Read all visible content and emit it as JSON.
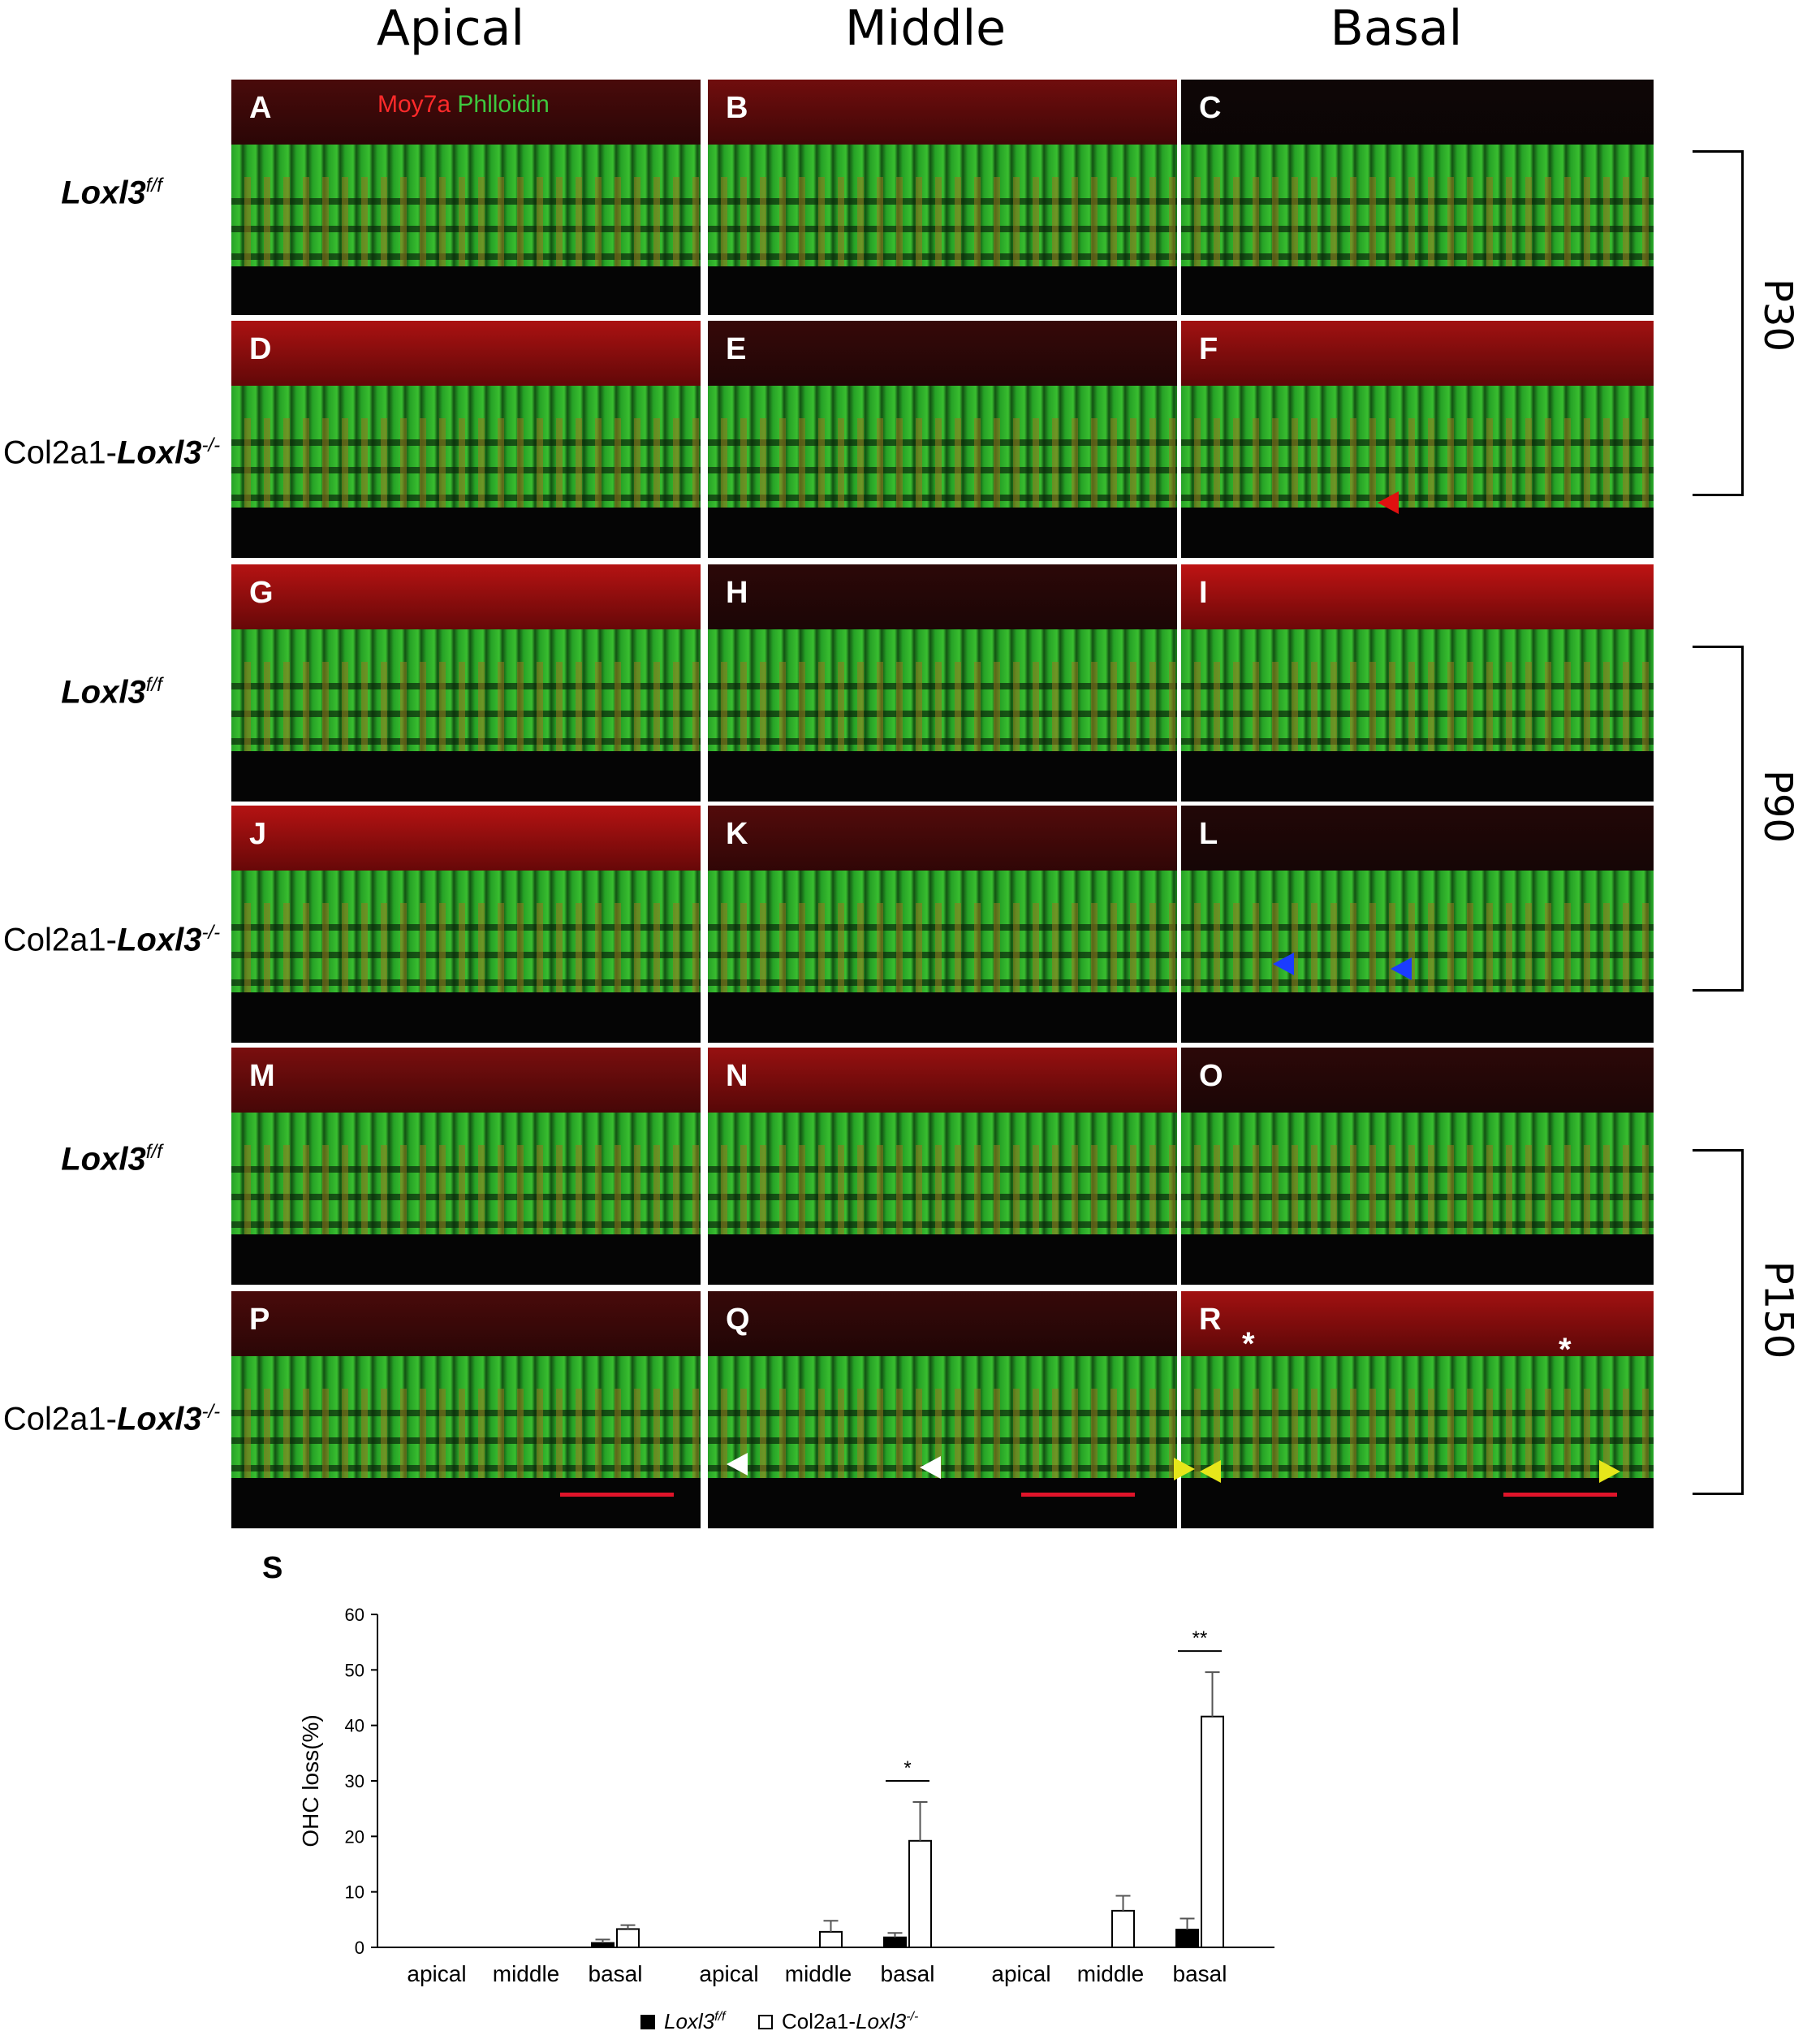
{
  "columns": [
    "Apical",
    "Middle",
    "Basal"
  ],
  "row_labels": [
    {
      "gene": "Loxl3",
      "sup": "f/f",
      "prefix": ""
    },
    {
      "gene": "Loxl3",
      "sup": "-/-",
      "prefix": "Col2a1-"
    },
    {
      "gene": "Loxl3",
      "sup": "f/f",
      "prefix": ""
    },
    {
      "gene": "Loxl3",
      "sup": "-/-",
      "prefix": "Col2a1-"
    },
    {
      "gene": "Loxl3",
      "sup": "f/f",
      "prefix": ""
    },
    {
      "gene": "Loxl3",
      "sup": "-/-",
      "prefix": "Col2a1-"
    }
  ],
  "time_labels": [
    "P30",
    "P90",
    "P150"
  ],
  "panel_letters": [
    "A",
    "B",
    "C",
    "D",
    "E",
    "F",
    "G",
    "H",
    "I",
    "J",
    "K",
    "L",
    "M",
    "N",
    "O",
    "P",
    "Q",
    "R"
  ],
  "stain_legend": {
    "red": "Moy7a",
    "green": "Phlloidin"
  },
  "colors": {
    "red_stain": "#ff2a2a",
    "green_stain": "#3ec83e",
    "blue_arrow": "#1b3cff",
    "yellow_arrow": "#e6e61a",
    "white_arrow": "#ffffff",
    "scale_bar": "#e0142a"
  },
  "chart_panel_label": "S",
  "chart_data": {
    "type": "bar",
    "ylabel": "OHC loss(%)",
    "ylim": [
      0,
      60
    ],
    "yticks": [
      0,
      10,
      20,
      30,
      40,
      50,
      60
    ],
    "groups": [
      "P30",
      "P90",
      "P150"
    ],
    "categories": [
      "apical",
      "middle",
      "basal"
    ],
    "series": [
      {
        "name": "Loxl3 f/f",
        "fill": "black",
        "values": [
          [
            0,
            0,
            0.8
          ],
          [
            0,
            0,
            1.8
          ],
          [
            0,
            0,
            3.2
          ]
        ],
        "errors": [
          [
            0,
            0,
            0.6
          ],
          [
            0,
            0,
            0.8
          ],
          [
            0,
            0,
            2.0
          ]
        ]
      },
      {
        "name": "Col2a1-Loxl3 -/-",
        "fill": "white",
        "values": [
          [
            0,
            0,
            3.3
          ],
          [
            0,
            2.8,
            19.2
          ],
          [
            0,
            6.6,
            41.6
          ]
        ],
        "errors": [
          [
            0,
            0,
            0.7
          ],
          [
            0,
            2.0,
            7.0
          ],
          [
            0,
            2.7,
            8.0
          ]
        ]
      }
    ],
    "significance": [
      {
        "group": "P90",
        "category": "basal",
        "label": "*"
      },
      {
        "group": "P150",
        "category": "basal",
        "label": "**"
      }
    ],
    "legend": [
      {
        "gene": "Loxl3",
        "sup": "f/f",
        "prefix": "",
        "fill": "black"
      },
      {
        "gene": "Loxl3",
        "sup": "-/-",
        "prefix": "Col2a1-",
        "fill": "white"
      }
    ]
  }
}
